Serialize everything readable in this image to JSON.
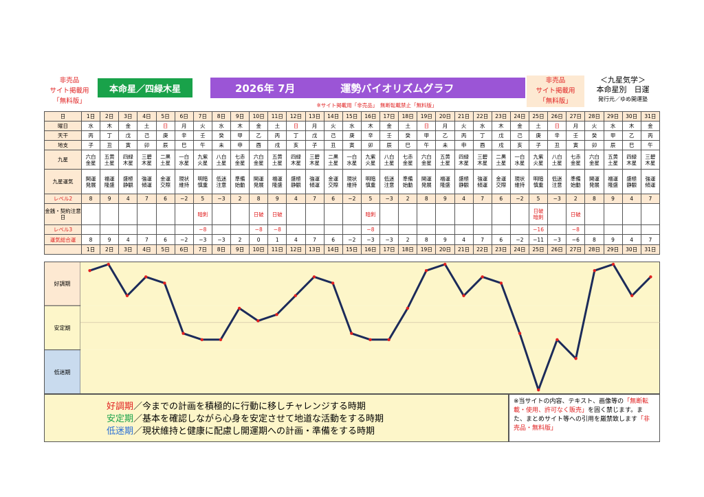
{
  "header": {
    "left_label": [
      "非売品",
      "サイト掲載用",
      "「無料版」"
    ],
    "honmei": "本命星／四緑木星",
    "title_year": "2026年 7月",
    "title_main": "運勢バイオリズムグラフ",
    "right_label": [
      "非売品",
      "サイト掲載用",
      "「無料版」"
    ],
    "kyusei_title": "＜九星気学＞",
    "kyusei_sub": "本命星別　日運",
    "publisher": "発行元／ゆめ開運塾",
    "notice": "※サイト掲載用「非売品」　無断転載禁止「無料版」"
  },
  "table": {
    "labels": {
      "day": "日",
      "weekday": "曜日",
      "kan": "天干",
      "shi": "地支",
      "kyusei": "九星",
      "unki": "九星運気",
      "lv2": "レベル2",
      "kin": "金銭・契約注意日",
      "lv3": "レベル3",
      "sogo": "運気総合運"
    },
    "days": [
      "1日",
      "2日",
      "3日",
      "4日",
      "5日",
      "6日",
      "7日",
      "8日",
      "9日",
      "10日",
      "11日",
      "12日",
      "13日",
      "14日",
      "15日",
      "16日",
      "17日",
      "18日",
      "19日",
      "20日",
      "21日",
      "22日",
      "23日",
      "24日",
      "25日",
      "26日",
      "27日",
      "28日",
      "29日",
      "30日",
      "31日"
    ],
    "weekday": [
      "水",
      "木",
      "金",
      "土",
      "日",
      "月",
      "火",
      "水",
      "木",
      "金",
      "土",
      "日",
      "月",
      "火",
      "水",
      "木",
      "金",
      "土",
      "日",
      "月",
      "火",
      "水",
      "木",
      "金",
      "土",
      "日",
      "月",
      "火",
      "水",
      "木",
      "金"
    ],
    "kan": [
      "丙",
      "丁",
      "戊",
      "己",
      "庚",
      "辛",
      "壬",
      "癸",
      "甲",
      "乙",
      "丙",
      "丁",
      "戊",
      "己",
      "庚",
      "辛",
      "壬",
      "癸",
      "甲",
      "乙",
      "丙",
      "丁",
      "戊",
      "己",
      "庚",
      "辛",
      "壬",
      "癸",
      "甲",
      "乙",
      "丙"
    ],
    "shi": [
      "子",
      "丑",
      "寅",
      "卯",
      "辰",
      "巳",
      "午",
      "未",
      "申",
      "酉",
      "戌",
      "亥",
      "子",
      "丑",
      "寅",
      "卯",
      "辰",
      "巳",
      "午",
      "未",
      "申",
      "酉",
      "戌",
      "亥",
      "子",
      "丑",
      "寅",
      "卯",
      "辰",
      "巳",
      "午"
    ],
    "kyusei": [
      [
        "六白",
        "金星"
      ],
      [
        "五黄",
        "土星"
      ],
      [
        "四緑",
        "木星"
      ],
      [
        "三碧",
        "木星"
      ],
      [
        "二黒",
        "土星"
      ],
      [
        "一白",
        "水星"
      ],
      [
        "九紫",
        "火星"
      ],
      [
        "八白",
        "土星"
      ],
      [
        "七赤",
        "金星"
      ],
      [
        "六白",
        "金星"
      ],
      [
        "五黄",
        "土星"
      ],
      [
        "四緑",
        "木星"
      ],
      [
        "三碧",
        "木星"
      ],
      [
        "二黒",
        "土星"
      ],
      [
        "一白",
        "水星"
      ],
      [
        "九紫",
        "火星"
      ],
      [
        "八白",
        "土星"
      ],
      [
        "七赤",
        "金星"
      ],
      [
        "六白",
        "金星"
      ],
      [
        "五黄",
        "土星"
      ],
      [
        "四緑",
        "木星"
      ],
      [
        "三碧",
        "木星"
      ],
      [
        "二黒",
        "土星"
      ],
      [
        "一白",
        "水星"
      ],
      [
        "九紫",
        "火星"
      ],
      [
        "八白",
        "土星"
      ],
      [
        "七赤",
        "金星"
      ],
      [
        "六白",
        "金星"
      ],
      [
        "五黄",
        "土星"
      ],
      [
        "四緑",
        "木星"
      ],
      [
        "三碧",
        "木星"
      ]
    ],
    "unki": [
      [
        "開運",
        "発展"
      ],
      [
        "福運",
        "隆盛"
      ],
      [
        "盛極",
        "静観"
      ],
      [
        "強運",
        "傾運"
      ],
      [
        "金運",
        "交際"
      ],
      [
        "現状",
        "維持"
      ],
      [
        "明暗",
        "慎重"
      ],
      [
        "低迷",
        "注意"
      ],
      [
        "準備",
        "始動"
      ],
      [
        "開運",
        "発展"
      ],
      [
        "福運",
        "隆盛"
      ],
      [
        "盛極",
        "静観"
      ],
      [
        "強運",
        "傾運"
      ],
      [
        "金運",
        "交際"
      ],
      [
        "現状",
        "維持"
      ],
      [
        "明暗",
        "慎重"
      ],
      [
        "低迷",
        "注意"
      ],
      [
        "準備",
        "始動"
      ],
      [
        "開運",
        "発展"
      ],
      [
        "福運",
        "隆盛"
      ],
      [
        "盛極",
        "静観"
      ],
      [
        "強運",
        "傾運"
      ],
      [
        "金運",
        "交際"
      ],
      [
        "現状",
        "維持"
      ],
      [
        "明暗",
        "慎重"
      ],
      [
        "低迷",
        "注意"
      ],
      [
        "準備",
        "始動"
      ],
      [
        "開運",
        "発展"
      ],
      [
        "福運",
        "隆盛"
      ],
      [
        "盛極",
        "静観"
      ],
      [
        "強運",
        "傾運"
      ]
    ],
    "lv2": [
      "8",
      "9",
      "4",
      "7",
      "6",
      "−2",
      "5",
      "−3",
      "2",
      "8",
      "9",
      "4",
      "7",
      "6",
      "−2",
      "5",
      "−3",
      "2",
      "8",
      "9",
      "4",
      "7",
      "6",
      "−2",
      "5",
      "−3",
      "2",
      "8",
      "9",
      "4",
      "7"
    ],
    "kin": [
      [],
      [],
      [],
      [],
      [],
      [],
      [
        "暗剣"
      ],
      [],
      [],
      [
        "日破"
      ],
      [
        "日破"
      ],
      [],
      [],
      [],
      [],
      [
        "暗剣"
      ],
      [],
      [],
      [],
      [],
      [],
      [],
      [],
      [],
      [
        "日破",
        "暗剣"
      ],
      [],
      [
        "日破"
      ],
      [],
      [],
      [],
      []
    ],
    "lv3": [
      "",
      "",
      "",
      "",
      "",
      "",
      "−8",
      "",
      "",
      "−8",
      "−8",
      "",
      "",
      "",
      "",
      "−8",
      "",
      "",
      "",
      "",
      "",
      "",
      "",
      "",
      "−16",
      "",
      "−8",
      "",
      "",
      "",
      ""
    ],
    "sogo": [
      "8",
      "9",
      "4",
      "7",
      "6",
      "−2",
      "−3",
      "−3",
      "2",
      "0",
      "1",
      "4",
      "7",
      "6",
      "−2",
      "−3",
      "−3",
      "2",
      "8",
      "9",
      "4",
      "7",
      "6",
      "−2",
      "−11",
      "−3",
      "−6",
      "8",
      "9",
      "4",
      "7"
    ]
  },
  "chart_data": {
    "type": "line",
    "x": [
      "1日",
      "2日",
      "3日",
      "4日",
      "5日",
      "6日",
      "7日",
      "8日",
      "9日",
      "10日",
      "11日",
      "12日",
      "13日",
      "14日",
      "15日",
      "16日",
      "17日",
      "18日",
      "19日",
      "20日",
      "21日",
      "22日",
      "23日",
      "24日",
      "25日",
      "26日",
      "27日",
      "28日",
      "29日",
      "30日",
      "31日"
    ],
    "series": [
      {
        "values": [
          8,
          9,
          4,
          7,
          6,
          -2,
          -3,
          -3,
          2,
          0,
          1,
          4,
          7,
          6,
          -2,
          -3,
          -3,
          2,
          8,
          9,
          4,
          7,
          6,
          -2,
          -11,
          -3,
          -6,
          8,
          9,
          4,
          7
        ]
      }
    ],
    "bands": [
      "好調期",
      "安定期",
      "低迷期"
    ],
    "band_colors": [
      "#fde9d2",
      "#fdf6c9",
      "#c9dbee"
    ],
    "line_color": "#1c2b5a",
    "point_color": "#e02020",
    "ylim": [
      -11,
      9
    ]
  },
  "footer": {
    "left": [
      {
        "key": "好調期",
        "text": "／今までの計画を積極的に行動に移しチャレンジする時期",
        "color": "#e02020"
      },
      {
        "key": "安定期",
        "text": "／基本を確認しながら心身を安定させて地道な活動をする時期",
        "color": "#19a24a"
      },
      {
        "key": "低迷期",
        "text": "／現状維持と健康に配慮し開運期への計画・準備をする時期",
        "color": "#2a6fd6"
      }
    ],
    "right_a": "※当サイトの内容、テキスト、画像等の",
    "right_b": "「無断転載・使用、許可なく販売」",
    "right_c": "を固く禁じます。また、まとめサイト等への引用を厳禁致します",
    "right_d": "「非売品・無料版」"
  }
}
